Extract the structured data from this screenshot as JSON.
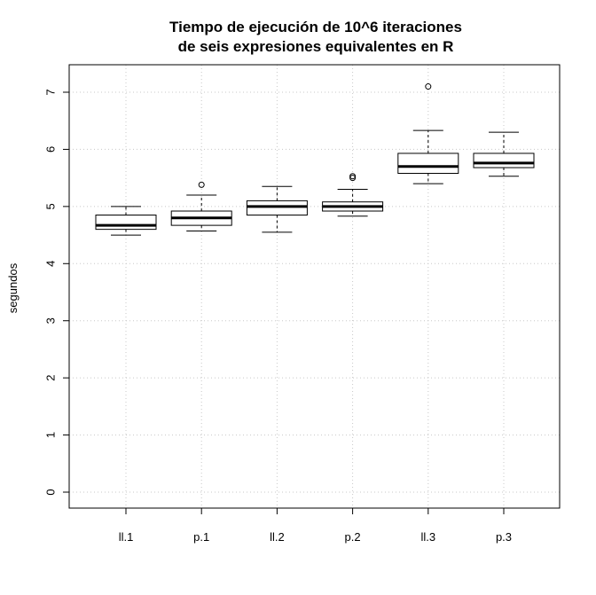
{
  "chart_data": {
    "type": "boxplot",
    "title": [
      "Tiempo de ejecución de 10^6 iteraciones",
      "de seis expresiones equivalentes en R"
    ],
    "ylabel": "segundos",
    "xlabel": "",
    "ylim": [
      0,
      7
    ],
    "yticks": [
      0,
      1,
      2,
      3,
      4,
      5,
      6,
      7
    ],
    "grid": true,
    "categories": [
      "ll.1",
      "p.1",
      "ll.2",
      "p.2",
      "ll.3",
      "p.3"
    ],
    "boxes": [
      {
        "category": "ll.1",
        "whisker_low": 4.5,
        "q1": 4.6,
        "median": 4.67,
        "q3": 4.85,
        "whisker_high": 5.0,
        "outliers": []
      },
      {
        "category": "p.1",
        "whisker_low": 4.57,
        "q1": 4.67,
        "median": 4.8,
        "q3": 4.92,
        "whisker_high": 5.2,
        "outliers": [
          5.38
        ]
      },
      {
        "category": "ll.2",
        "whisker_low": 4.55,
        "q1": 4.85,
        "median": 5.0,
        "q3": 5.1,
        "whisker_high": 5.35,
        "outliers": []
      },
      {
        "category": "p.2",
        "whisker_low": 4.83,
        "q1": 4.92,
        "median": 5.0,
        "q3": 5.08,
        "whisker_high": 5.3,
        "outliers": [
          5.5,
          5.53
        ]
      },
      {
        "category": "ll.3",
        "whisker_low": 5.4,
        "q1": 5.58,
        "median": 5.7,
        "q3": 5.93,
        "whisker_high": 6.33,
        "outliers": [
          7.1
        ]
      },
      {
        "category": "p.3",
        "whisker_low": 5.53,
        "q1": 5.68,
        "median": 5.76,
        "q3": 5.93,
        "whisker_high": 6.3,
        "outliers": []
      }
    ]
  }
}
